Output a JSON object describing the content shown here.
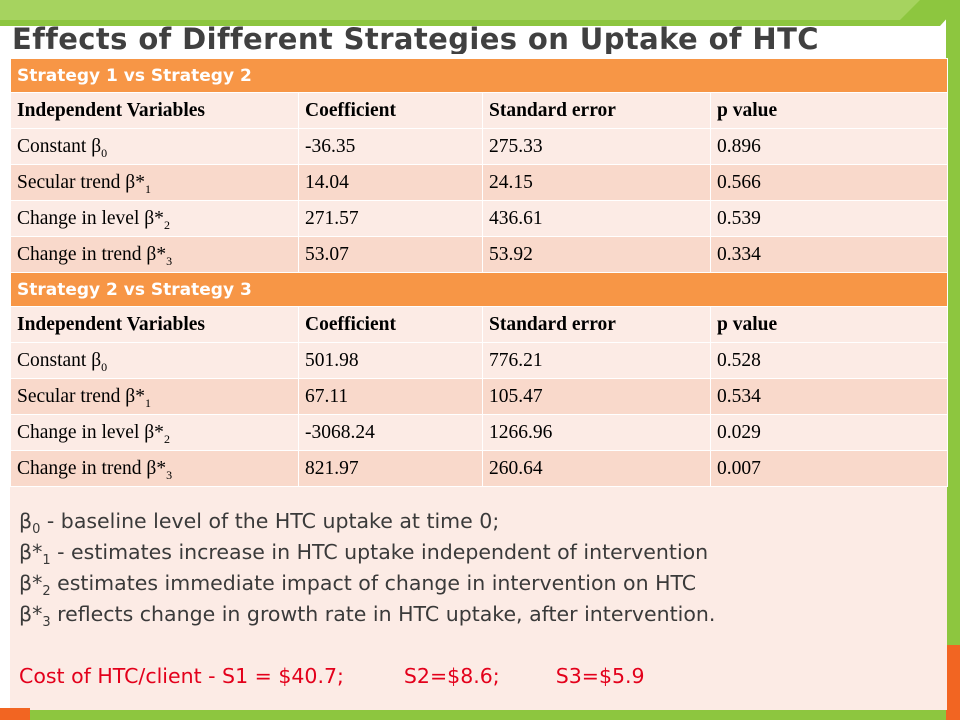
{
  "title": "Effects of Different Strategies on Uptake of HTC",
  "sections": [
    {
      "heading": "Strategy 1 vs Strategy 2",
      "columns": [
        "Independent Variables",
        "Coefficient",
        "Standard error",
        "p value"
      ],
      "rows": [
        {
          "var": "Constant β",
          "sub": "0",
          "coef": "-36.35",
          "se": "275.33",
          "p": "0.896"
        },
        {
          "var": "Secular trend β*",
          "sub": "1",
          "coef": "14.04",
          "se": "24.15",
          "p": "0.566"
        },
        {
          "var": "Change in level β*",
          "sub": "2",
          "coef": "271.57",
          "se": "436.61",
          "p": "0.539"
        },
        {
          "var": "Change in trend β*",
          "sub": "3",
          "coef": "53.07",
          "se": "53.92",
          "p": "0.334"
        }
      ]
    },
    {
      "heading": "Strategy 2 vs Strategy 3",
      "columns": [
        "Independent Variables",
        "Coefficient",
        "Standard error",
        "p value"
      ],
      "rows": [
        {
          "var": "Constant β",
          "sub": "0",
          "coef": "501.98",
          "se": "776.21",
          "p": "0.528"
        },
        {
          "var": "Secular trend β*",
          "sub": "1",
          "coef": "67.11",
          "se": "105.47",
          "p": "0.534"
        },
        {
          "var": "Change in level β*",
          "sub": "2",
          "coef": "-3068.24",
          "se": "1266.96",
          "p": "0.029"
        },
        {
          "var": "Change in trend β*",
          "sub": "3",
          "coef": "821.97",
          "se": "260.64",
          "p": "0.007"
        }
      ]
    }
  ],
  "notes": [
    {
      "sym": "β",
      "sub": "0",
      "text": " - baseline level of the HTC uptake at time 0;"
    },
    {
      "sym": "β*",
      "sub": "1",
      "text": " - estimates increase in HTC uptake independent of intervention"
    },
    {
      "sym": "β*",
      "sub": "2",
      "text": " estimates immediate impact of change in intervention on HTC"
    },
    {
      "sym": "β*",
      "sub": "3",
      "text": " reflects change in growth rate in HTC uptake, after intervention."
    }
  ],
  "cost": {
    "s1": "Cost of HTC/client - S1 = $40.7;",
    "s2": "S2=$8.6;",
    "s3": "S3=$5.9"
  },
  "colors": {
    "section_header": "#f79646",
    "row_light": "#fcebe5",
    "row_dark": "#f9d9cb",
    "accent_green": "#8dc63f",
    "accent_orange": "#f26522",
    "cost_text": "#e3001b"
  }
}
